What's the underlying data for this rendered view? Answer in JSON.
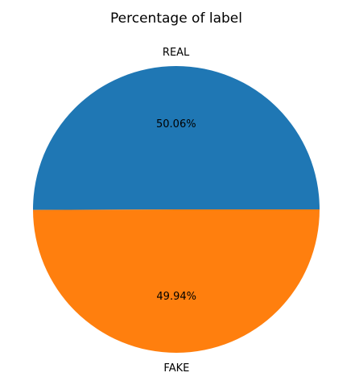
{
  "chart_data": {
    "type": "pie",
    "title": "Percentage of label",
    "categories": [
      "REAL",
      "FAKE"
    ],
    "values": [
      50.06,
      49.94
    ],
    "value_labels": [
      "50.06%",
      "49.94%"
    ],
    "colors": [
      "#1f77b4",
      "#ff7f0e"
    ],
    "start_angle_deg": 0,
    "direction": "counterclockwise",
    "legend": "none"
  }
}
